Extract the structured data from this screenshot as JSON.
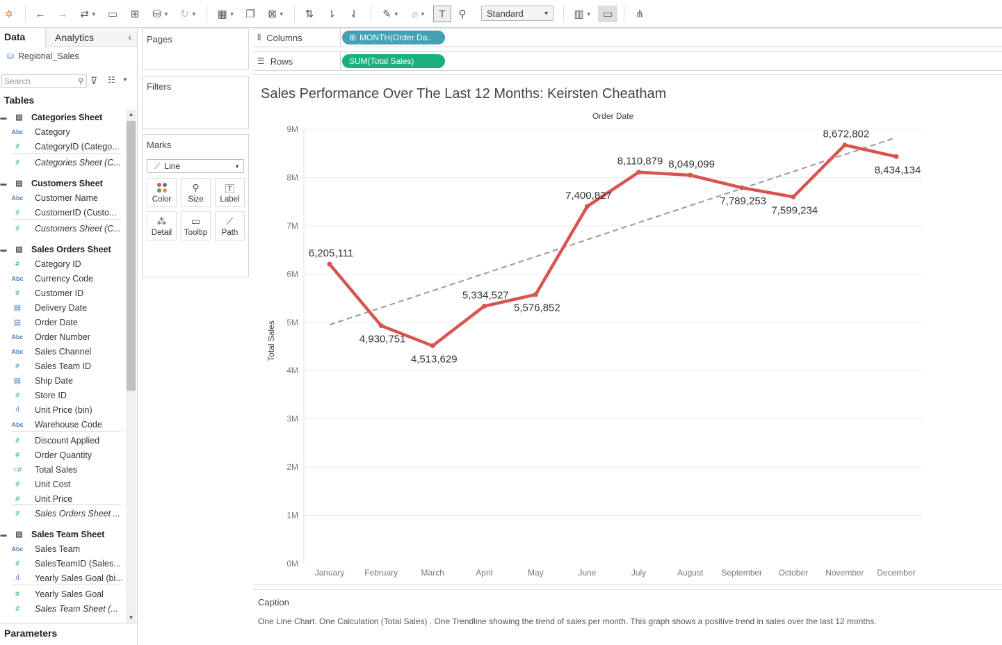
{
  "toolbar": {
    "view_size": "Standard"
  },
  "data_pane": {
    "tab_data": "Data",
    "tab_analytics": "Analytics",
    "datasource": "Regional_Sales",
    "search_placeholder": "Search",
    "tables_header": "Tables",
    "parameters_header": "Parameters",
    "fields": [
      {
        "type": "table",
        "label": "Categories Sheet"
      },
      {
        "type": "abc",
        "label": "Category"
      },
      {
        "type": "num",
        "label": "CategoryID (Catego..."
      },
      {
        "type": "num-italic",
        "label": "Categories Sheet (C..."
      },
      {
        "type": "table",
        "label": "Customers Sheet"
      },
      {
        "type": "abc",
        "label": "Customer Name"
      },
      {
        "type": "num",
        "label": "CustomerID (Custo..."
      },
      {
        "type": "num-italic",
        "label": "Customers Sheet (C..."
      },
      {
        "type": "table",
        "label": "Sales Orders Sheet"
      },
      {
        "type": "num",
        "label": "Category ID"
      },
      {
        "type": "abc",
        "label": "Currency Code"
      },
      {
        "type": "num",
        "label": "Customer ID"
      },
      {
        "type": "date",
        "label": "Delivery Date"
      },
      {
        "type": "date",
        "label": "Order Date"
      },
      {
        "type": "abc",
        "label": "Order Number"
      },
      {
        "type": "abc",
        "label": "Sales Channel"
      },
      {
        "type": "num",
        "label": "Sales Team ID"
      },
      {
        "type": "date",
        "label": "Ship Date"
      },
      {
        "type": "num",
        "label": "Store ID"
      },
      {
        "type": "bin",
        "label": "Unit Price (bin)"
      },
      {
        "type": "abc",
        "label": "Warehouse Code"
      },
      {
        "type": "num",
        "label": "Discount Applied"
      },
      {
        "type": "num",
        "label": "Order Quantity"
      },
      {
        "type": "calc",
        "label": "Total Sales"
      },
      {
        "type": "num",
        "label": "Unit Cost"
      },
      {
        "type": "num",
        "label": "Unit Price"
      },
      {
        "type": "num-italic",
        "label": "Sales Orders Sheet ..."
      },
      {
        "type": "table",
        "label": "Sales Team Sheet"
      },
      {
        "type": "abc",
        "label": "Sales Team"
      },
      {
        "type": "num",
        "label": "SalesTeamID (Sales..."
      },
      {
        "type": "bin",
        "label": "Yearly Sales Goal (bi..."
      },
      {
        "type": "num",
        "label": "Yearly Sales Goal"
      },
      {
        "type": "num-italic",
        "label": "Sales Team Sheet (..."
      }
    ]
  },
  "cards": {
    "pages": "Pages",
    "filters": "Filters",
    "marks": "Marks",
    "mark_type": "Line",
    "buttons": [
      "Color",
      "Size",
      "Label",
      "Detail",
      "Tooltip",
      "Path"
    ]
  },
  "shelves": {
    "columns_label": "Columns",
    "columns_pill": "MONTH(Order Da..",
    "rows_label": "Rows",
    "rows_pill": "SUM(Total Sales)"
  },
  "caption": {
    "title": "Caption",
    "text": "One Line Chart. One Calculation (Total Sales) . One Trendline showing the trend of sales per month. This graph shows  a positive trend in sales over the last 12 months."
  },
  "chart_data": {
    "type": "line",
    "title": "Sales Performance Over The Last 12 Months: Keirsten Cheatham",
    "xlabel": "Order Date",
    "ylabel": "Total Sales",
    "categories": [
      "January",
      "February",
      "March",
      "April",
      "May",
      "June",
      "July",
      "August",
      "September",
      "October",
      "November",
      "December"
    ],
    "series": [
      {
        "values": [
          6205111,
          4930751,
          4513629,
          5334527,
          5576852,
          7400827,
          8110879,
          8049099,
          7789253,
          7599234,
          8672802,
          8434134
        ]
      }
    ],
    "data_labels": [
      "6,205,111",
      "4,930,751",
      "4,513,629",
      "5,334,527",
      "5,576,852",
      "7,400,827",
      "8,110,879",
      "8,049,099",
      "7,789,253",
      "7,599,234",
      "8,672,802",
      "8,434,134"
    ],
    "yticks": [
      "0M",
      "1M",
      "2M",
      "3M",
      "4M",
      "5M",
      "6M",
      "7M",
      "8M",
      "9M"
    ],
    "ylim": [
      0,
      9000000
    ],
    "trendline": {
      "start": 4950000,
      "end": 8830000,
      "style": "dashed"
    },
    "line_color": "#d9534f",
    "trend_color": "#999999",
    "grid": true
  }
}
